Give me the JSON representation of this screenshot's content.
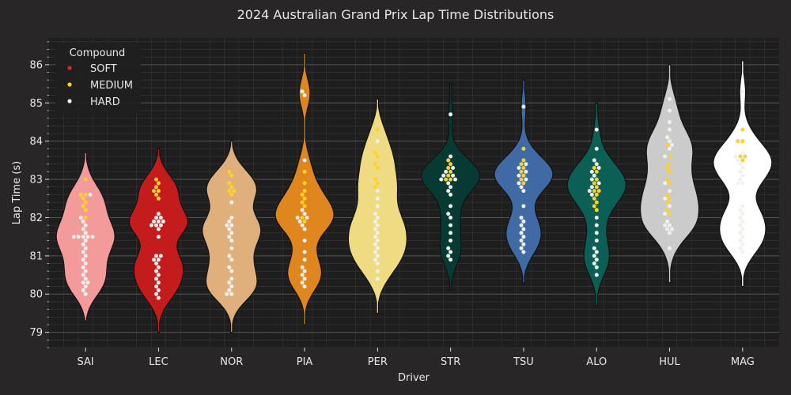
{
  "chart_data": {
    "type": "violin",
    "title": "2024 Australian Grand Prix Lap Time Distributions",
    "xlabel": "Driver",
    "ylabel": "Lap Time (s)",
    "ylim": [
      78.6,
      86.7
    ],
    "yticks": [
      79,
      80,
      81,
      82,
      83,
      84,
      85,
      86
    ],
    "categories": [
      "SAI",
      "LEC",
      "NOR",
      "PIA",
      "PER",
      "STR",
      "TSU",
      "ALO",
      "HUL",
      "MAG"
    ],
    "grid": true,
    "legend": {
      "title": "Compound",
      "placement": "top-left",
      "entries": [
        {
          "label": "SOFT",
          "color": "#da291c"
        },
        {
          "label": "MEDIUM",
          "color": "#ffd12e"
        },
        {
          "label": "HARD",
          "color": "#f0f0ec"
        }
      ]
    },
    "violin_colors": {
      "SAI": "#f39a9a",
      "LEC": "#c41c1c",
      "NOR": "#e0b07c",
      "PIA": "#e0861e",
      "PER": "#efdc82",
      "STR": "#063a33",
      "TSU": "#3f6aa4",
      "ALO": "#0c5f55",
      "HUL": "#cbcbcb",
      "MAG": "#ffffff"
    },
    "violin_ranges": {
      "SAI": [
        79.3,
        83.7
      ],
      "LEC": [
        79.0,
        83.8
      ],
      "NOR": [
        79.0,
        84.0
      ],
      "PIA": [
        79.2,
        86.3
      ],
      "PER": [
        79.5,
        85.1
      ],
      "STR": [
        80.1,
        85.5
      ],
      "TSU": [
        80.3,
        85.6
      ],
      "ALO": [
        79.7,
        85.0
      ],
      "HUL": [
        80.3,
        86.0
      ],
      "MAG": [
        80.2,
        86.1
      ]
    },
    "series": [
      {
        "driver": "SAI",
        "compound": "MEDIUM",
        "laps": [
          83.0,
          82.6,
          82.6,
          82.5,
          82.4,
          82.3,
          82.2,
          82.0
        ]
      },
      {
        "driver": "SAI",
        "compound": "HARD",
        "laps": [
          82.6,
          82.0,
          81.9,
          81.8,
          81.7,
          81.6,
          81.5,
          81.5,
          81.5,
          81.5,
          81.5,
          81.4,
          81.3,
          81.2,
          81.1,
          81.0,
          80.9,
          80.8,
          80.7,
          80.6,
          80.5,
          80.4,
          80.3,
          80.3,
          80.2,
          80.1,
          80.0
        ]
      },
      {
        "driver": "LEC",
        "compound": "MEDIUM",
        "laps": [
          83.0,
          82.9,
          82.8,
          82.7,
          82.7,
          82.6,
          82.5
        ]
      },
      {
        "driver": "LEC",
        "compound": "HARD",
        "laps": [
          82.1,
          82.0,
          82.0,
          81.9,
          81.9,
          81.9,
          81.8,
          81.8,
          81.8,
          81.7,
          81.5,
          81.0,
          81.0,
          80.9,
          80.9,
          80.8,
          80.7,
          80.6,
          80.5,
          80.4,
          80.3,
          80.2,
          80.1,
          80.0,
          79.9
        ]
      },
      {
        "driver": "NOR",
        "compound": "MEDIUM",
        "laps": [
          83.2,
          83.1,
          82.9,
          82.8,
          82.7,
          82.7,
          82.6
        ]
      },
      {
        "driver": "NOR",
        "compound": "HARD",
        "laps": [
          82.4,
          82.0,
          81.9,
          81.8,
          81.8,
          81.7,
          81.6,
          81.5,
          81.4,
          81.2,
          81.0,
          80.9,
          80.7,
          80.6,
          80.4,
          80.3,
          80.2,
          80.1,
          80.0,
          80.0
        ]
      },
      {
        "driver": "PIA",
        "compound": "MEDIUM",
        "laps": [
          83.2,
          82.9,
          82.7,
          82.6,
          82.5,
          82.4,
          82.3,
          82.0,
          81.9
        ]
      },
      {
        "driver": "PIA",
        "compound": "HARD",
        "laps": [
          85.3,
          85.2,
          83.5,
          82.2,
          82.1,
          82.0,
          82.0,
          81.9,
          81.8,
          81.7,
          81.4,
          81.1,
          80.9,
          80.7,
          80.6,
          80.5,
          80.4,
          80.3,
          80.2
        ]
      },
      {
        "driver": "PER",
        "compound": "MEDIUM",
        "laps": [
          84.3,
          83.7,
          83.6,
          83.4,
          83.3,
          83.0,
          82.9,
          82.8
        ]
      },
      {
        "driver": "PER",
        "compound": "HARD",
        "laps": [
          84.0,
          82.7,
          82.5,
          82.3,
          82.1,
          82.0,
          81.9,
          81.8,
          81.7,
          81.6,
          81.5,
          81.4,
          81.3,
          81.2,
          81.1,
          81.0,
          80.9,
          80.8,
          80.6,
          80.4
        ]
      },
      {
        "driver": "STR",
        "compound": "MEDIUM",
        "laps": [
          83.5,
          83.4,
          83.3,
          83.2,
          83.1,
          83.0,
          83.0
        ]
      },
      {
        "driver": "STR",
        "compound": "HARD",
        "laps": [
          84.7,
          83.6,
          83.3,
          83.2,
          83.1,
          83.1,
          83.0,
          83.0,
          82.9,
          82.8,
          82.7,
          82.6,
          82.3,
          82.1,
          82.0,
          81.8,
          81.6,
          81.4,
          81.2,
          81.1,
          81.0,
          80.9
        ]
      },
      {
        "driver": "TSU",
        "compound": "MEDIUM",
        "laps": [
          83.8,
          83.5,
          83.4,
          83.3,
          83.2,
          83.1,
          83.0,
          82.9
        ]
      },
      {
        "driver": "TSU",
        "compound": "HARD",
        "laps": [
          84.9,
          83.4,
          83.3,
          83.2,
          83.1,
          83.0,
          82.9,
          82.8,
          82.7,
          82.3,
          82.0,
          81.9,
          81.8,
          81.7,
          81.6,
          81.5,
          81.4,
          81.3,
          81.2,
          81.1
        ]
      },
      {
        "driver": "ALO",
        "compound": "MEDIUM",
        "laps": [
          83.3,
          83.2,
          83.0,
          82.9,
          82.8,
          82.7,
          82.7,
          82.6,
          82.5,
          82.4,
          82.3,
          82.2
        ]
      },
      {
        "driver": "ALO",
        "compound": "HARD",
        "laps": [
          84.3,
          83.8,
          83.5,
          83.4,
          83.3,
          83.2,
          83.1,
          83.0,
          82.9,
          82.8,
          82.7,
          82.6,
          82.0,
          81.8,
          81.6,
          81.4,
          81.2,
          81.1,
          81.0,
          80.9,
          80.8,
          80.7,
          80.5
        ]
      },
      {
        "driver": "HUL",
        "compound": "MEDIUM",
        "laps": [
          83.9,
          83.6,
          83.4,
          83.3,
          83.2,
          83.0,
          82.9,
          82.6,
          82.5,
          82.4,
          82.2,
          82.1
        ]
      },
      {
        "driver": "HUL",
        "compound": "HARD",
        "laps": [
          85.1,
          84.8,
          84.5,
          84.3,
          84.1,
          84.0,
          83.9,
          83.8,
          83.6,
          82.9,
          82.7,
          82.5,
          82.3,
          82.1,
          81.9,
          81.8,
          81.8,
          81.7,
          81.7,
          81.6,
          81.2
        ]
      },
      {
        "driver": "MAG",
        "compound": "MEDIUM",
        "laps": [
          84.3,
          84.0,
          84.0,
          83.6,
          83.6,
          83.5
        ]
      },
      {
        "driver": "MAG",
        "compound": "HARD",
        "laps": [
          85.3,
          83.7,
          83.6,
          83.5,
          83.4,
          83.3,
          83.2,
          83.1,
          83.0,
          82.9,
          82.9,
          82.3,
          82.2,
          82.1,
          82.0,
          81.9,
          81.8,
          81.7,
          81.6,
          81.5,
          81.4,
          81.3,
          81.2,
          81.1
        ]
      }
    ]
  }
}
